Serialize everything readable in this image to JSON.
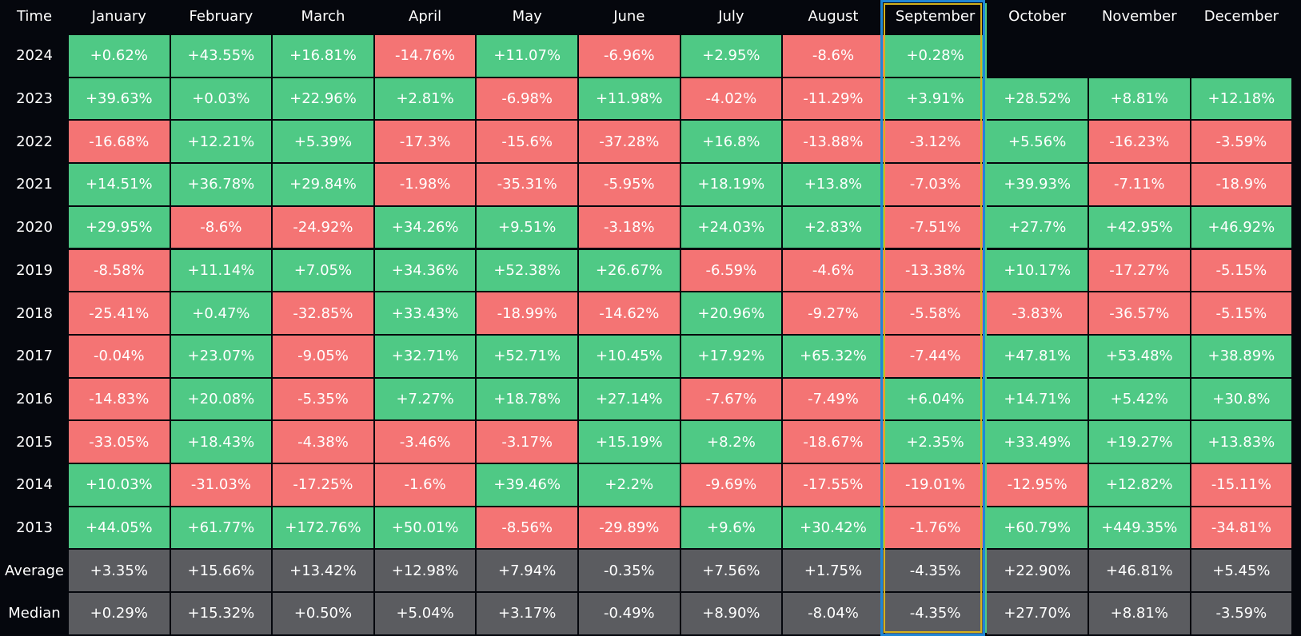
{
  "chart_data": {
    "type": "table",
    "corner_label": "Time",
    "columns": [
      "January",
      "February",
      "March",
      "April",
      "May",
      "June",
      "July",
      "August",
      "September",
      "October",
      "November",
      "December"
    ],
    "highlighted_column": "September",
    "colors": {
      "positive": "#4fc985",
      "negative": "#f47474",
      "summary": "#5b5c60",
      "background": "#05070d",
      "highlight_outer": "#1f86d6",
      "highlight_inner": "#d5b21e"
    },
    "rows": [
      {
        "label": "2024",
        "values": [
          "+0.62%",
          "+43.55%",
          "+16.81%",
          "-14.76%",
          "+11.07%",
          "-6.96%",
          "+2.95%",
          "-8.6%",
          "+0.28%",
          "",
          "",
          ""
        ]
      },
      {
        "label": "2023",
        "values": [
          "+39.63%",
          "+0.03%",
          "+22.96%",
          "+2.81%",
          "-6.98%",
          "+11.98%",
          "-4.02%",
          "-11.29%",
          "+3.91%",
          "+28.52%",
          "+8.81%",
          "+12.18%"
        ]
      },
      {
        "label": "2022",
        "values": [
          "-16.68%",
          "+12.21%",
          "+5.39%",
          "-17.3%",
          "-15.6%",
          "-37.28%",
          "+16.8%",
          "-13.88%",
          "-3.12%",
          "+5.56%",
          "-16.23%",
          "-3.59%"
        ]
      },
      {
        "label": "2021",
        "values": [
          "+14.51%",
          "+36.78%",
          "+29.84%",
          "-1.98%",
          "-35.31%",
          "-5.95%",
          "+18.19%",
          "+13.8%",
          "-7.03%",
          "+39.93%",
          "-7.11%",
          "-18.9%"
        ]
      },
      {
        "label": "2020",
        "values": [
          "+29.95%",
          "-8.6%",
          "-24.92%",
          "+34.26%",
          "+9.51%",
          "-3.18%",
          "+24.03%",
          "+2.83%",
          "-7.51%",
          "+27.7%",
          "+42.95%",
          "+46.92%"
        ]
      },
      {
        "label": "2019",
        "values": [
          "-8.58%",
          "+11.14%",
          "+7.05%",
          "+34.36%",
          "+52.38%",
          "+26.67%",
          "-6.59%",
          "-4.6%",
          "-13.38%",
          "+10.17%",
          "-17.27%",
          "-5.15%"
        ]
      },
      {
        "label": "2018",
        "values": [
          "-25.41%",
          "+0.47%",
          "-32.85%",
          "+33.43%",
          "-18.99%",
          "-14.62%",
          "+20.96%",
          "-9.27%",
          "-5.58%",
          "-3.83%",
          "-36.57%",
          "-5.15%"
        ]
      },
      {
        "label": "2017",
        "values": [
          "-0.04%",
          "+23.07%",
          "-9.05%",
          "+32.71%",
          "+52.71%",
          "+10.45%",
          "+17.92%",
          "+65.32%",
          "-7.44%",
          "+47.81%",
          "+53.48%",
          "+38.89%"
        ]
      },
      {
        "label": "2016",
        "values": [
          "-14.83%",
          "+20.08%",
          "-5.35%",
          "+7.27%",
          "+18.78%",
          "+27.14%",
          "-7.67%",
          "-7.49%",
          "+6.04%",
          "+14.71%",
          "+5.42%",
          "+30.8%"
        ]
      },
      {
        "label": "2015",
        "values": [
          "-33.05%",
          "+18.43%",
          "-4.38%",
          "-3.46%",
          "-3.17%",
          "+15.19%",
          "+8.2%",
          "-18.67%",
          "+2.35%",
          "+33.49%",
          "+19.27%",
          "+13.83%"
        ]
      },
      {
        "label": "2014",
        "values": [
          "+10.03%",
          "-31.03%",
          "-17.25%",
          "-1.6%",
          "+39.46%",
          "+2.2%",
          "-9.69%",
          "-17.55%",
          "-19.01%",
          "-12.95%",
          "+12.82%",
          "-15.11%"
        ]
      },
      {
        "label": "2013",
        "values": [
          "+44.05%",
          "+61.77%",
          "+172.76%",
          "+50.01%",
          "-8.56%",
          "-29.89%",
          "+9.6%",
          "+30.42%",
          "-1.76%",
          "+60.79%",
          "+449.35%",
          "-34.81%"
        ]
      }
    ],
    "summary_rows": [
      {
        "label": "Average",
        "values": [
          "+3.35%",
          "+15.66%",
          "+13.42%",
          "+12.98%",
          "+7.94%",
          "-0.35%",
          "+7.56%",
          "+1.75%",
          "-4.35%",
          "+22.90%",
          "+46.81%",
          "+5.45%"
        ]
      },
      {
        "label": "Median",
        "values": [
          "+0.29%",
          "+15.32%",
          "+0.50%",
          "+5.04%",
          "+3.17%",
          "-0.49%",
          "+8.90%",
          "-8.04%",
          "-4.35%",
          "+27.70%",
          "+8.81%",
          "-3.59%"
        ]
      }
    ]
  }
}
